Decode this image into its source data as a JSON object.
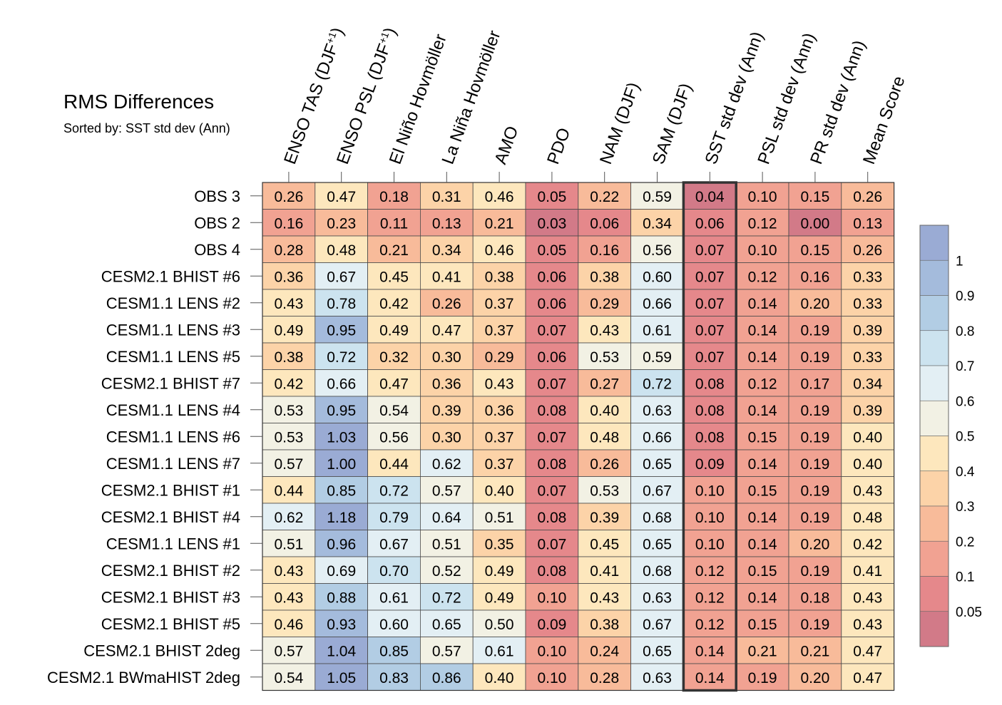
{
  "chart_data": {
    "type": "heatmap",
    "title": "RMS Differences",
    "subtitle": "Sorted by: SST std dev (Ann)",
    "columns": [
      {
        "text": "ENSO TAS (DJF",
        "sup": "+1",
        "close": ")"
      },
      {
        "text": "ENSO PSL (DJF",
        "sup": "+1",
        "close": ")"
      },
      {
        "text": "El Niño Hovmöller"
      },
      {
        "text": "La Niña Hovmöller"
      },
      {
        "text": "AMO"
      },
      {
        "text": "PDO"
      },
      {
        "text": "NAM (DJF)"
      },
      {
        "text": "SAM (DJF)"
      },
      {
        "text": "SST std dev (Ann)"
      },
      {
        "text": "PSL std dev (Ann)"
      },
      {
        "text": "PR std dev (Ann)"
      },
      {
        "text": "Mean Score"
      }
    ],
    "highlighted_column": "SST std dev (Ann)",
    "rows": [
      "OBS 3",
      "OBS 2",
      "OBS 4",
      "CESM2.1 BHIST #6",
      "CESM1.1 LENS #2",
      "CESM1.1 LENS #3",
      "CESM1.1 LENS #5",
      "CESM2.1 BHIST #7",
      "CESM1.1 LENS #4",
      "CESM1.1 LENS #6",
      "CESM1.1 LENS #7",
      "CESM2.1 BHIST #1",
      "CESM2.1 BHIST #4",
      "CESM1.1 LENS #1",
      "CESM2.1 BHIST #2",
      "CESM2.1 BHIST #3",
      "CESM2.1 BHIST #5",
      "CESM2.1 BHIST 2deg",
      "CESM2.1 BWmaHIST 2deg"
    ],
    "values": [
      [
        "0.26",
        "0.47",
        "0.18",
        "0.31",
        "0.46",
        "0.05",
        "0.22",
        "0.59",
        "0.04",
        "0.10",
        "0.15",
        "0.26"
      ],
      [
        "0.16",
        "0.23",
        "0.11",
        "0.13",
        "0.21",
        "0.03",
        "0.06",
        "0.34",
        "0.06",
        "0.12",
        "0.00",
        "0.13"
      ],
      [
        "0.28",
        "0.48",
        "0.21",
        "0.34",
        "0.46",
        "0.05",
        "0.16",
        "0.56",
        "0.07",
        "0.10",
        "0.15",
        "0.26"
      ],
      [
        "0.36",
        "0.67",
        "0.45",
        "0.41",
        "0.38",
        "0.06",
        "0.38",
        "0.60",
        "0.07",
        "0.12",
        "0.16",
        "0.33"
      ],
      [
        "0.43",
        "0.78",
        "0.42",
        "0.26",
        "0.37",
        "0.06",
        "0.29",
        "0.66",
        "0.07",
        "0.14",
        "0.20",
        "0.33"
      ],
      [
        "0.49",
        "0.95",
        "0.49",
        "0.47",
        "0.37",
        "0.07",
        "0.43",
        "0.61",
        "0.07",
        "0.14",
        "0.19",
        "0.39"
      ],
      [
        "0.38",
        "0.72",
        "0.32",
        "0.30",
        "0.29",
        "0.06",
        "0.53",
        "0.59",
        "0.07",
        "0.14",
        "0.19",
        "0.33"
      ],
      [
        "0.42",
        "0.66",
        "0.47",
        "0.36",
        "0.43",
        "0.07",
        "0.27",
        "0.72",
        "0.08",
        "0.12",
        "0.17",
        "0.34"
      ],
      [
        "0.53",
        "0.95",
        "0.54",
        "0.39",
        "0.36",
        "0.08",
        "0.40",
        "0.63",
        "0.08",
        "0.14",
        "0.19",
        "0.39"
      ],
      [
        "0.53",
        "1.03",
        "0.56",
        "0.30",
        "0.37",
        "0.07",
        "0.48",
        "0.66",
        "0.08",
        "0.15",
        "0.19",
        "0.40"
      ],
      [
        "0.57",
        "1.00",
        "0.44",
        "0.62",
        "0.37",
        "0.08",
        "0.26",
        "0.65",
        "0.09",
        "0.14",
        "0.19",
        "0.40"
      ],
      [
        "0.44",
        "0.85",
        "0.72",
        "0.57",
        "0.40",
        "0.07",
        "0.53",
        "0.67",
        "0.10",
        "0.15",
        "0.19",
        "0.43"
      ],
      [
        "0.62",
        "1.18",
        "0.79",
        "0.64",
        "0.51",
        "0.08",
        "0.39",
        "0.68",
        "0.10",
        "0.14",
        "0.19",
        "0.48"
      ],
      [
        "0.51",
        "0.96",
        "0.67",
        "0.51",
        "0.35",
        "0.07",
        "0.45",
        "0.65",
        "0.10",
        "0.14",
        "0.20",
        "0.42"
      ],
      [
        "0.43",
        "0.69",
        "0.70",
        "0.52",
        "0.49",
        "0.08",
        "0.41",
        "0.68",
        "0.12",
        "0.15",
        "0.19",
        "0.41"
      ],
      [
        "0.43",
        "0.88",
        "0.61",
        "0.72",
        "0.49",
        "0.10",
        "0.43",
        "0.63",
        "0.12",
        "0.14",
        "0.18",
        "0.43"
      ],
      [
        "0.46",
        "0.93",
        "0.60",
        "0.65",
        "0.50",
        "0.09",
        "0.38",
        "0.67",
        "0.12",
        "0.15",
        "0.19",
        "0.43"
      ],
      [
        "0.57",
        "1.04",
        "0.85",
        "0.57",
        "0.61",
        "0.10",
        "0.24",
        "0.65",
        "0.14",
        "0.21",
        "0.21",
        "0.47"
      ],
      [
        "0.54",
        "1.05",
        "0.83",
        "0.86",
        "0.40",
        "0.10",
        "0.28",
        "0.63",
        "0.14",
        "0.19",
        "0.20",
        "0.47"
      ]
    ],
    "colorbar": {
      "labels": [
        "1",
        "0.9",
        "0.8",
        "0.7",
        "0.6",
        "0.5",
        "0.4",
        "0.3",
        "0.2",
        "0.1",
        "0.05"
      ],
      "levels": [
        0.05,
        0.1,
        0.2,
        0.3,
        0.4,
        0.5,
        0.6,
        0.7,
        0.8,
        0.9,
        1
      ],
      "colors": [
        "#d27a88",
        "#e5888b",
        "#f1a292",
        "#f8bb9a",
        "#fcd3a8",
        "#fde7bd",
        "#f2f1e4",
        "#e3eff4",
        "#cce3ef",
        "#b2cde4",
        "#a4bbdc",
        "#9aabd4"
      ]
    }
  }
}
